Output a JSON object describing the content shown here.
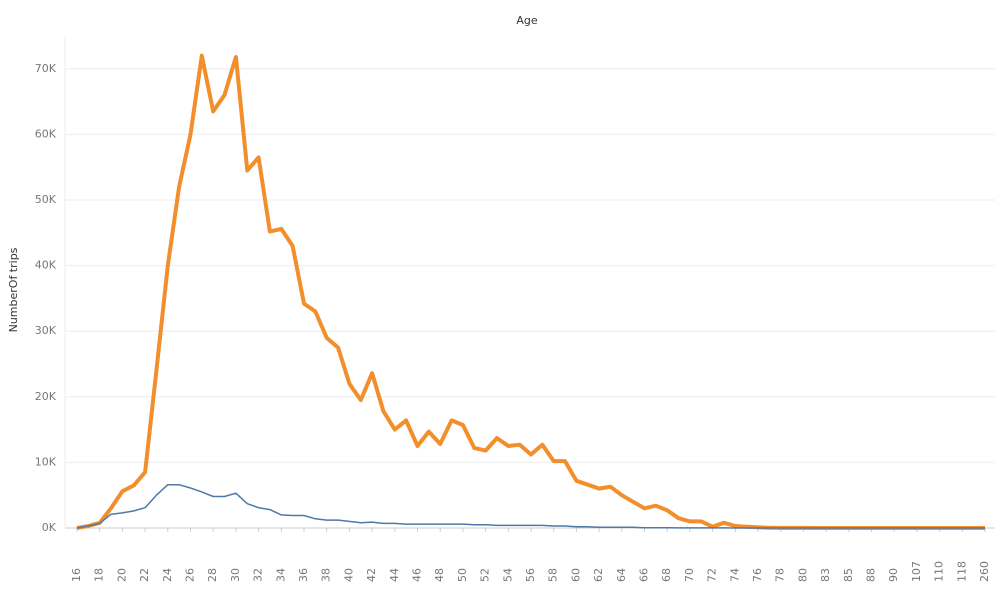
{
  "chart_data": {
    "type": "line",
    "title": "Age",
    "y_label": "NumberOf trips",
    "categories": [
      "16",
      null,
      "18",
      null,
      "20",
      null,
      "22",
      null,
      "24",
      null,
      "26",
      null,
      "28",
      null,
      "30",
      null,
      "32",
      null,
      "34",
      null,
      "36",
      null,
      "38",
      null,
      "40",
      null,
      "42",
      null,
      "44",
      null,
      "46",
      null,
      "48",
      null,
      "50",
      null,
      "52",
      null,
      "54",
      null,
      "56",
      null,
      "58",
      null,
      "60",
      null,
      "62",
      null,
      "64",
      null,
      "66",
      null,
      "68",
      null,
      "70",
      null,
      "72",
      null,
      "74",
      null,
      "76",
      null,
      "78",
      null,
      "80",
      null,
      "83",
      null,
      "85",
      null,
      "88",
      null,
      "90",
      null,
      "107",
      null,
      "110",
      null,
      "118",
      null,
      "260"
    ],
    "series": [
      {
        "color": "#f28e2b",
        "width": 4,
        "values": [
          0,
          300,
          800,
          3000,
          5600,
          6500,
          8500,
          24000,
          40000,
          52000,
          60000,
          72000,
          63500,
          66000,
          71800,
          54500,
          56500,
          45200,
          45600,
          43000,
          34200,
          33000,
          29000,
          27500,
          22000,
          19500,
          23600,
          17800,
          15000,
          16400,
          12500,
          14700,
          12800,
          16400,
          15700,
          12200,
          11800,
          13700,
          12500,
          12700,
          11200,
          12700,
          10200,
          10200,
          7200,
          6600,
          6000,
          6300,
          5000,
          4000,
          3000,
          3400,
          2700,
          1500,
          1000,
          1000,
          200,
          800,
          300,
          200,
          100,
          50,
          20,
          10,
          10,
          0,
          0,
          0,
          0,
          0,
          0,
          0,
          0,
          0,
          0,
          0,
          0,
          0,
          0,
          0,
          0
        ]
      },
      {
        "color": "#4e79a7",
        "width": 1.5,
        "values": [
          0,
          300,
          700,
          2100,
          2300,
          2600,
          3100,
          5000,
          6600,
          6600,
          6100,
          5500,
          4800,
          4800,
          5300,
          3700,
          3100,
          2800,
          2000,
          1900,
          1900,
          1400,
          1200,
          1200,
          1000,
          800,
          900,
          700,
          700,
          600,
          600,
          600,
          600,
          600,
          600,
          500,
          500,
          400,
          400,
          400,
          400,
          400,
          300,
          300,
          200,
          200,
          100,
          100,
          100,
          100,
          50,
          50,
          50,
          20,
          20,
          10,
          10,
          10,
          0,
          0,
          0,
          0,
          0,
          0,
          0,
          0,
          0,
          0,
          0,
          0,
          0,
          0,
          0,
          0,
          0,
          0,
          0,
          0,
          0,
          0,
          0
        ]
      }
    ],
    "ylim": [
      0,
      75000
    ],
    "yticks": [
      {
        "value": 0,
        "label": "0K"
      },
      {
        "value": 10000,
        "label": "10K"
      },
      {
        "value": 20000,
        "label": "20K"
      },
      {
        "value": 30000,
        "label": "30K"
      },
      {
        "value": 40000,
        "label": "40K"
      },
      {
        "value": 50000,
        "label": "50K"
      },
      {
        "value": 60000,
        "label": "60K"
      },
      {
        "value": 70000,
        "label": "70K"
      }
    ],
    "grid": true
  }
}
